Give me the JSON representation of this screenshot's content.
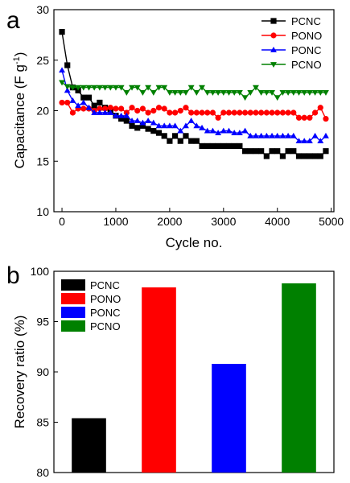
{
  "chart_data": [
    {
      "panel_label": "a",
      "type": "line",
      "xlabel": "Cycle no.",
      "ylabel_main": "Capacitance (F g",
      "ylabel_sup": "-1",
      "ylabel_tail": ")",
      "xlim": [
        -150,
        5050
      ],
      "ylim": [
        10,
        30
      ],
      "xticks": [
        "0",
        "1000",
        "2000",
        "3000",
        "4000",
        "5000"
      ],
      "yticks": [
        "10",
        "15",
        "20",
        "25",
        "30"
      ],
      "legend_position": "top-right",
      "series": [
        {
          "name": "PCNC",
          "color": "#000000",
          "marker": "square",
          "x": [
            0,
            100,
            200,
            300,
            400,
            500,
            600,
            700,
            800,
            900,
            1000,
            1100,
            1200,
            1300,
            1400,
            1500,
            1600,
            1700,
            1800,
            1900,
            2000,
            2100,
            2200,
            2300,
            2400,
            2500,
            2600,
            2700,
            2800,
            2900,
            3000,
            3100,
            3200,
            3300,
            3400,
            3500,
            3600,
            3700,
            3800,
            3900,
            4000,
            4100,
            4200,
            4300,
            4400,
            4500,
            4600,
            4700,
            4800,
            4900
          ],
          "y": [
            27.8,
            24.5,
            22.3,
            22.0,
            21.3,
            21.3,
            20.5,
            20.8,
            20.3,
            20.0,
            19.5,
            19.2,
            19.0,
            18.5,
            18.3,
            18.5,
            18.2,
            18.0,
            17.8,
            17.5,
            17.0,
            17.5,
            17.0,
            17.5,
            17.0,
            17.0,
            16.5,
            16.5,
            16.5,
            16.5,
            16.5,
            16.5,
            16.5,
            16.5,
            16.0,
            16.0,
            16.0,
            16.0,
            15.5,
            16.0,
            16.0,
            15.5,
            16.0,
            16.0,
            15.5,
            15.5,
            15.5,
            15.5,
            15.5,
            16.0
          ]
        },
        {
          "name": "PONO",
          "color": "#ff0000",
          "marker": "circle",
          "x": [
            0,
            100,
            200,
            300,
            400,
            500,
            600,
            700,
            800,
            900,
            1000,
            1100,
            1200,
            1300,
            1400,
            1500,
            1600,
            1700,
            1800,
            1900,
            2000,
            2100,
            2200,
            2300,
            2400,
            2500,
            2600,
            2700,
            2800,
            2900,
            3000,
            3100,
            3200,
            3300,
            3400,
            3500,
            3600,
            3700,
            3800,
            3900,
            4000,
            4100,
            4200,
            4300,
            4400,
            4500,
            4600,
            4700,
            4800,
            4900
          ],
          "y": [
            20.8,
            20.8,
            19.8,
            20.2,
            20.2,
            20.2,
            20.0,
            20.2,
            20.2,
            20.3,
            20.2,
            20.2,
            19.8,
            20.3,
            20.0,
            20.2,
            19.8,
            20.0,
            20.3,
            20.2,
            19.8,
            19.8,
            20.0,
            20.3,
            19.8,
            19.8,
            19.8,
            19.8,
            19.8,
            19.3,
            19.8,
            19.8,
            19.8,
            19.8,
            19.8,
            19.8,
            19.8,
            19.8,
            19.8,
            19.8,
            19.8,
            19.8,
            19.8,
            19.8,
            19.3,
            19.3,
            19.3,
            19.8,
            20.3,
            19.2
          ]
        },
        {
          "name": "PONC",
          "color": "#0000ff",
          "marker": "triangle-up",
          "x": [
            0,
            100,
            200,
            300,
            400,
            500,
            600,
            700,
            800,
            900,
            1000,
            1100,
            1200,
            1300,
            1400,
            1500,
            1600,
            1700,
            1800,
            1900,
            2000,
            2100,
            2200,
            2300,
            2400,
            2500,
            2600,
            2700,
            2800,
            2900,
            3000,
            3100,
            3200,
            3300,
            3400,
            3500,
            3600,
            3700,
            3800,
            3900,
            4000,
            4100,
            4200,
            4300,
            4400,
            4500,
            4600,
            4700,
            4800,
            4900
          ],
          "y": [
            24.0,
            22.0,
            21.0,
            20.5,
            20.8,
            20.3,
            19.8,
            19.8,
            19.8,
            19.8,
            19.5,
            19.5,
            19.5,
            19.0,
            19.0,
            18.8,
            19.0,
            18.8,
            18.5,
            18.5,
            18.5,
            18.5,
            18.0,
            18.5,
            19.0,
            18.5,
            18.3,
            18.0,
            18.0,
            17.8,
            18.0,
            18.0,
            17.8,
            17.8,
            18.0,
            17.5,
            17.5,
            17.5,
            17.5,
            17.5,
            17.5,
            17.5,
            17.5,
            17.5,
            17.0,
            17.0,
            17.0,
            17.5,
            17.0,
            17.5
          ]
        },
        {
          "name": "PCNO",
          "color": "#008000",
          "marker": "triangle-down",
          "x": [
            0,
            100,
            200,
            300,
            400,
            500,
            600,
            700,
            800,
            900,
            1000,
            1100,
            1200,
            1300,
            1400,
            1500,
            1600,
            1700,
            1800,
            1900,
            2000,
            2100,
            2200,
            2300,
            2400,
            2500,
            2600,
            2700,
            2800,
            2900,
            3000,
            3100,
            3200,
            3300,
            3400,
            3500,
            3600,
            3700,
            3800,
            3900,
            4000,
            4100,
            4200,
            4300,
            4400,
            4500,
            4600,
            4700,
            4800,
            4900
          ],
          "y": [
            22.8,
            22.4,
            22.3,
            22.3,
            22.3,
            22.3,
            22.3,
            22.3,
            22.3,
            22.3,
            22.3,
            22.3,
            21.8,
            22.3,
            22.3,
            21.8,
            22.3,
            21.8,
            22.3,
            22.3,
            21.8,
            21.8,
            21.8,
            21.8,
            22.3,
            21.8,
            22.3,
            21.8,
            21.8,
            21.8,
            21.8,
            21.8,
            21.8,
            21.8,
            21.3,
            21.8,
            22.3,
            21.8,
            21.8,
            21.8,
            21.3,
            21.8,
            21.8,
            21.8,
            21.8,
            21.8,
            21.8,
            21.8,
            21.8,
            21.8
          ]
        }
      ]
    },
    {
      "panel_label": "b",
      "type": "bar",
      "ylabel": "Recovery ratio (%)",
      "ylim": [
        80,
        100
      ],
      "yticks": [
        "80",
        "85",
        "90",
        "95",
        "100"
      ],
      "legend_position": "top-left",
      "categories": [
        "PCNC",
        "PONO",
        "PONC",
        "PCNO"
      ],
      "values": [
        85.4,
        98.4,
        90.8,
        98.8
      ],
      "colors": [
        "#000000",
        "#ff0000",
        "#0000ff",
        "#008000"
      ]
    }
  ]
}
